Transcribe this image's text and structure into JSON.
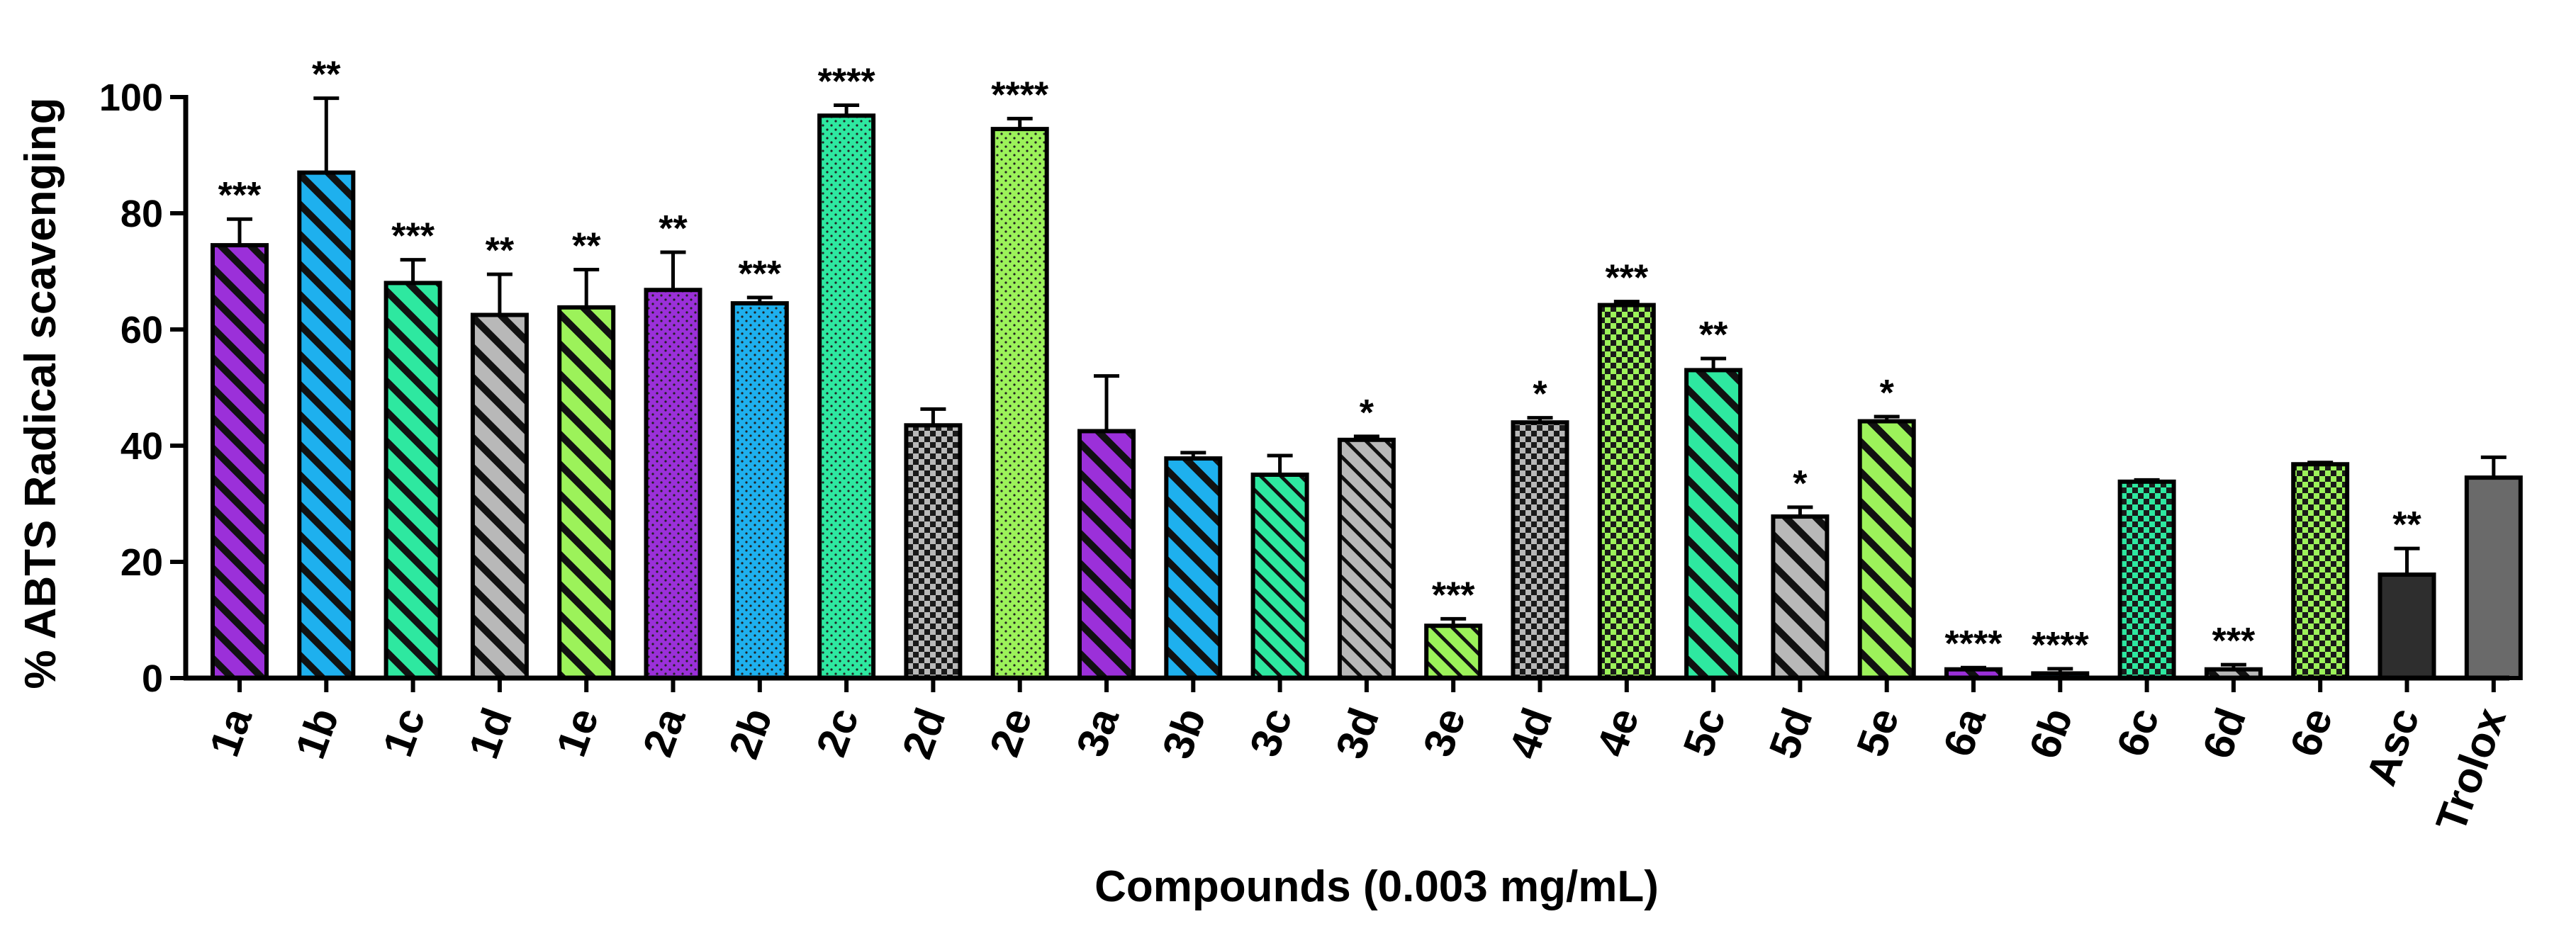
{
  "chart_data": {
    "type": "bar",
    "title": "",
    "xlabel": "Compounds (0.003 mg/mL)",
    "ylabel": "% ABTS Radical scavenging",
    "ylim": [
      0,
      100
    ],
    "yticks": [
      0,
      20,
      40,
      60,
      80,
      100
    ],
    "ytick_labels": [
      "0",
      "20",
      "40",
      "60",
      "80",
      "100"
    ],
    "grid": false,
    "categories": [
      "1a",
      "1b",
      "1c",
      "1d",
      "1e",
      "2a",
      "2b",
      "2c",
      "2d",
      "2e",
      "3a",
      "3b",
      "3c",
      "3d",
      "3e",
      "4d",
      "4e",
      "5c",
      "5d",
      "5e",
      "6a",
      "6b",
      "6c",
      "6d",
      "6e",
      "Asc",
      "Trolox"
    ],
    "values": [
      74.5,
      87.0,
      68.0,
      62.5,
      63.8,
      66.8,
      64.5,
      96.8,
      43.5,
      94.5,
      42.5,
      37.8,
      35.0,
      41.0,
      9.0,
      44.0,
      64.2,
      53.0,
      27.8,
      44.2,
      1.5,
      0.8,
      33.8,
      1.5,
      36.8,
      17.8,
      34.5
    ],
    "errors": [
      4.5,
      12.8,
      4.0,
      7.0,
      6.5,
      6.5,
      1.0,
      1.8,
      2.8,
      1.8,
      9.5,
      1.0,
      3.3,
      0.6,
      1.2,
      0.8,
      0.6,
      2.0,
      1.6,
      0.8,
      0.3,
      0.8,
      0.3,
      0.8,
      0.3,
      4.5,
      3.5
    ],
    "significance": [
      "***",
      "**",
      "***",
      "**",
      "**",
      "**",
      "***",
      "****",
      "",
      "****",
      "",
      "",
      "",
      "*",
      "***",
      "*",
      "***",
      "**",
      "*",
      "*",
      "****",
      "****",
      "",
      "***",
      "",
      "**",
      ""
    ],
    "colors": [
      "#9b30d9",
      "#1eb0ee",
      "#2ee8a0",
      "#b8b8b8",
      "#9cf25a",
      "#9b30d9",
      "#1eb0ee",
      "#2ee8a0",
      "#b8b8b8",
      "#9cf25a",
      "#9b30d9",
      "#1eb0ee",
      "#2ee8a0",
      "#b8b8b8",
      "#9cf25a",
      "#b8b8b8",
      "#9cf25a",
      "#2ee8a0",
      "#b8b8b8",
      "#9cf25a",
      "#9b30d9",
      "#1eb0ee",
      "#2ee8a0",
      "#b8b8b8",
      "#9cf25a",
      "#2e2e2e",
      "#6a6a6a"
    ],
    "patterns": [
      "diag-bold",
      "diag-bold",
      "diag-bold",
      "diag-bold",
      "diag-bold",
      "dots",
      "dots",
      "dots",
      "checker",
      "dots",
      "diag-bold",
      "diag-bold",
      "diag-thin",
      "diag-thin",
      "diag-thin",
      "checker",
      "checker",
      "diag-bold",
      "diag-bold",
      "diag-bold",
      "diag-bold",
      "diag-bold",
      "checker",
      "diag-bold",
      "checker",
      "solid",
      "solid"
    ]
  }
}
